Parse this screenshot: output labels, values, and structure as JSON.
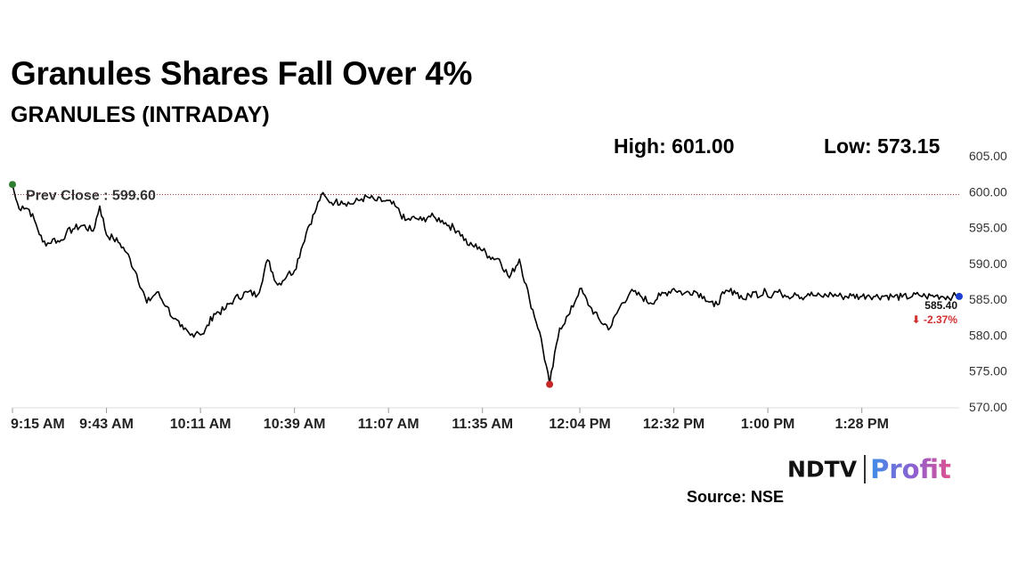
{
  "header": {
    "title": "Granules Shares Fall Over 4%",
    "subtitle": "GRANULES (INTRADAY)",
    "high_label": "High: 601.00",
    "low_label": "Low: 573.15"
  },
  "footer": {
    "logo_ndtv": "NDTV",
    "logo_profit": "Profit",
    "source": "Source: NSE"
  },
  "colors": {
    "line": "#000000",
    "open_marker": "#2e7d32",
    "low_marker": "#c62828",
    "last_marker": "#1e40d0",
    "change_down": "#d32f2f",
    "prev_close_line": "#a04040"
  },
  "chart_data": {
    "type": "line",
    "title": "GRANULES (INTRADAY)",
    "xlabel": "",
    "ylabel": "",
    "ylim": [
      570,
      605
    ],
    "y_ticks": [
      "605.00",
      "600.00",
      "595.00",
      "590.00",
      "585.00",
      "580.00",
      "575.00",
      "570.00"
    ],
    "x_ticks": [
      {
        "label": "9:15 AM",
        "minute": 0
      },
      {
        "label": "9:43 AM",
        "minute": 28
      },
      {
        "label": "10:11 AM",
        "minute": 56
      },
      {
        "label": "10:39 AM",
        "minute": 84
      },
      {
        "label": "11:07 AM",
        "minute": 112
      },
      {
        "label": "11:35 AM",
        "minute": 140
      },
      {
        "label": "12:04 PM",
        "minute": 169
      },
      {
        "label": "12:32 PM",
        "minute": 197
      },
      {
        "label": "1:00 PM",
        "minute": 225
      },
      {
        "label": "1:28 PM",
        "minute": 253
      }
    ],
    "xlim": [
      0,
      282
    ],
    "grid": false,
    "prev_close": {
      "label": "Prev Close : 599.60",
      "value": 599.6
    },
    "last": {
      "price": "585.40",
      "change": "-2.37%",
      "value": 585.4
    },
    "high": 601.0,
    "low": 573.15,
    "series": [
      {
        "x_minutes": [
          0,
          1,
          2,
          3,
          5,
          7,
          9,
          11,
          12,
          14,
          16,
          18,
          21,
          24,
          26,
          28,
          30,
          32,
          34,
          37,
          40,
          43,
          46,
          48,
          50,
          51,
          53,
          55,
          57,
          60,
          63,
          66,
          70,
          73,
          76,
          79,
          82,
          84,
          86,
          88,
          90,
          92,
          94,
          96,
          98,
          101,
          104,
          106,
          108,
          111,
          114,
          117,
          120,
          122,
          124,
          126,
          128,
          130,
          133,
          136,
          139,
          142,
          145,
          148,
          151,
          154,
          157,
          160,
          163,
          166,
          169,
          172,
          175,
          178,
          181,
          184,
          187,
          190,
          193,
          197,
          200,
          203,
          206,
          209,
          212,
          215,
          218,
          221,
          223,
          224,
          226,
          227,
          229,
          230,
          231,
          233,
          234,
          236,
          237,
          239,
          241,
          244,
          247,
          250,
          253,
          255,
          257,
          260,
          262,
          265,
          268,
          270,
          272,
          275,
          277,
          280,
          282
        ],
        "values": [
          601.0,
          599.0,
          597.6,
          598.0,
          597.5,
          595.5,
          593.0,
          592.8,
          593.4,
          593.0,
          594.2,
          594.8,
          595.3,
          594.5,
          598.0,
          594.0,
          593.5,
          592.8,
          591.5,
          588.5,
          584.5,
          586.0,
          584.0,
          582.3,
          581.2,
          580.8,
          580.0,
          580.5,
          580.2,
          583.0,
          583.5,
          585.0,
          586.0,
          585.6,
          590.5,
          587.0,
          588.5,
          589.0,
          592.0,
          595.0,
          597.0,
          599.6,
          598.8,
          598.5,
          598.7,
          598.3,
          599.0,
          599.2,
          598.8,
          598.7,
          598.0,
          596.0,
          596.3,
          596.0,
          596.6,
          596.3,
          596.0,
          595.3,
          594.5,
          592.5,
          592.3,
          591.0,
          590.6,
          588.0,
          590.6,
          585.0,
          580.5,
          573.15,
          581.0,
          583.0,
          586.5,
          584.0,
          582.0,
          581.0,
          584.0,
          586.0,
          585.5,
          584.5,
          585.5,
          586.5,
          585.8,
          586.2,
          585.4,
          584.0,
          585.8,
          586.2,
          585.0,
          586.0,
          585.5,
          586.5,
          585.2,
          586.1,
          585.8,
          585.6,
          585.4,
          585.9,
          585.6,
          585.3,
          585.8,
          585.5,
          585.4,
          585.7,
          585.4,
          585.5,
          585.4,
          585.6,
          585.4,
          585.5,
          585.4,
          585.3,
          585.4,
          585.6,
          585.4,
          585.5,
          585.4,
          585.4,
          585.4
        ]
      }
    ]
  }
}
